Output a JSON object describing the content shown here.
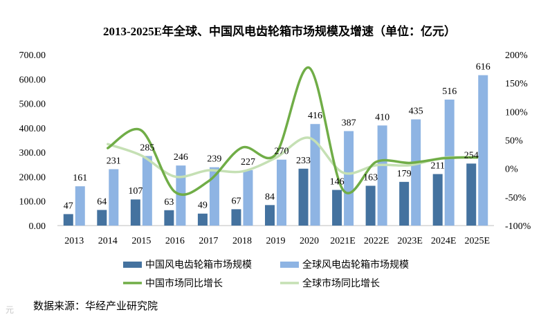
{
  "chart_data": {
    "type": "bar",
    "title": "2013-2025E年全球、中国风电齿轮箱市场规模及增速（单位：亿元）",
    "categories": [
      "2013",
      "2014",
      "2015",
      "2016",
      "2017",
      "2018",
      "2019",
      "2020",
      "2021E",
      "2022E",
      "2023E",
      "2024E",
      "2025E"
    ],
    "y_left": {
      "min": 0,
      "max": 700,
      "step": 100,
      "tick_labels": [
        "0.00",
        "100.00",
        "200.00",
        "300.00",
        "400.00",
        "500.00",
        "600.00",
        "700.00"
      ]
    },
    "y_right": {
      "min": -100,
      "max": 200,
      "step": 50,
      "tick_labels": [
        "-100%",
        "-50%",
        "0%",
        "50%",
        "100%",
        "150%",
        "200%"
      ]
    },
    "series": [
      {
        "name": "中国风电齿轮箱市场规模",
        "kind": "bar",
        "axis": "left",
        "color": "#44729f",
        "values": [
          47,
          64,
          107,
          63,
          49,
          67,
          84,
          233,
          146,
          163,
          179,
          211,
          254
        ]
      },
      {
        "name": "全球风电齿轮箱市场规模",
        "kind": "bar",
        "axis": "left",
        "color": "#8eb4e3",
        "values": [
          161,
          231,
          285,
          246,
          239,
          227,
          270,
          416,
          387,
          410,
          435,
          516,
          616
        ]
      },
      {
        "name": "中国市场同比增长",
        "kind": "line",
        "axis": "right",
        "color": "#70ad47",
        "values": [
          null,
          36,
          67,
          -41,
          -22,
          37,
          25,
          177,
          -37,
          12,
          10,
          18,
          20
        ]
      },
      {
        "name": "全球市场同比增长",
        "kind": "line",
        "axis": "right",
        "color": "#c5e0b4",
        "values": [
          null,
          43,
          23,
          -14,
          -3,
          -5,
          19,
          54,
          -7,
          6,
          6,
          19,
          19
        ]
      }
    ],
    "source": "数据来源：华经产业研究院"
  },
  "watermark": "元"
}
